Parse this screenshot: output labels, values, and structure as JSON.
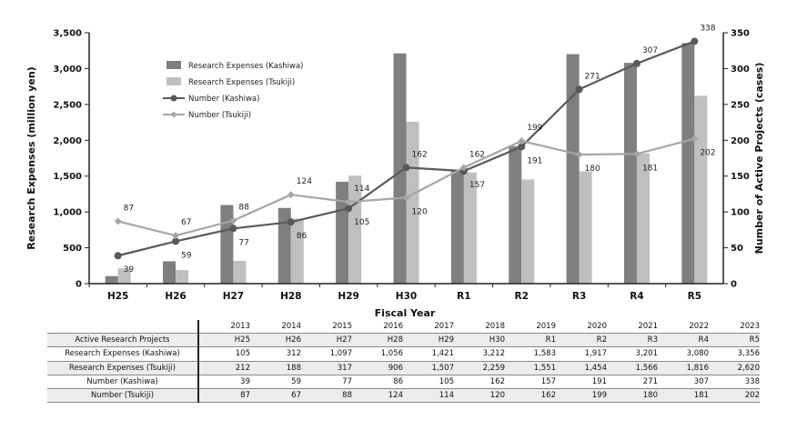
{
  "chart_data": {
    "type": "bar",
    "categories": [
      "H25",
      "H26",
      "H27",
      "H28",
      "H29",
      "H30",
      "R1",
      "R2",
      "R3",
      "R4",
      "R5"
    ],
    "xlabel": "Fiscal Year",
    "ylabel": "Research Expenses (million yen)",
    "y2label": "Number of Active Projects (cases)",
    "ylim": [
      0,
      3500
    ],
    "y2lim": [
      0,
      350
    ],
    "yticks": [
      "0",
      "500",
      "1,000",
      "1,500",
      "2,000",
      "2,500",
      "3,000",
      "3,500"
    ],
    "y2ticks": [
      "0",
      "50",
      "100",
      "150",
      "200",
      "250",
      "300",
      "350"
    ],
    "grid": false,
    "legend_position": "top-left",
    "series": [
      {
        "name": "Research Expenses (Kashiwa)",
        "kind": "bar",
        "axis": "left",
        "color": "#7f7f7f",
        "values": [
          105,
          312,
          1097,
          1056,
          1421,
          3212,
          1583,
          1917,
          3201,
          3080,
          3356
        ]
      },
      {
        "name": "Research Expenses (Tsukiji)",
        "kind": "bar",
        "axis": "left",
        "color": "#bfbfbf",
        "values": [
          212,
          188,
          317,
          906,
          1507,
          2259,
          1551,
          1454,
          1566,
          1816,
          2620
        ]
      },
      {
        "name": "Number (Kashiwa)",
        "kind": "line",
        "axis": "right",
        "color": "#595959",
        "values": [
          39,
          59,
          77,
          86,
          105,
          162,
          157,
          191,
          271,
          307,
          338
        ]
      },
      {
        "name": "Number (Tsukiji)",
        "kind": "line",
        "axis": "right",
        "color": "#a6a6a6",
        "values": [
          87,
          67,
          88,
          124,
          114,
          120,
          162,
          199,
          180,
          181,
          202
        ]
      }
    ]
  },
  "table": {
    "header_label": "",
    "years": [
      "2013",
      "2014",
      "2015",
      "2016",
      "2017",
      "2018",
      "2019",
      "2020",
      "2021",
      "2022",
      "2023"
    ],
    "rows": [
      {
        "label": "Active Research Projects",
        "values": [
          "H25",
          "H26",
          "H27",
          "H28",
          "H29",
          "H30",
          "R1",
          "R2",
          "R3",
          "R4",
          "R5"
        ]
      },
      {
        "label": "Research Expenses (Kashiwa)",
        "values": [
          "105",
          "312",
          "1,097",
          "1,056",
          "1,421",
          "3,212",
          "1,583",
          "1,917",
          "3,201",
          "3,080",
          "3,356"
        ]
      },
      {
        "label": "Research Expenses (Tsukiji)",
        "values": [
          "212",
          "188",
          "317",
          "906",
          "1,507",
          "2,259",
          "1,551",
          "1,454",
          "1,566",
          "1,816",
          "2,620"
        ]
      },
      {
        "label": "Number (Kashiwa)",
        "values": [
          "39",
          "59",
          "77",
          "86",
          "105",
          "162",
          "157",
          "191",
          "271",
          "307",
          "338"
        ]
      },
      {
        "label": "Number (Tsukiji)",
        "values": [
          "87",
          "67",
          "88",
          "124",
          "114",
          "120",
          "162",
          "199",
          "180",
          "181",
          "202"
        ]
      }
    ]
  }
}
